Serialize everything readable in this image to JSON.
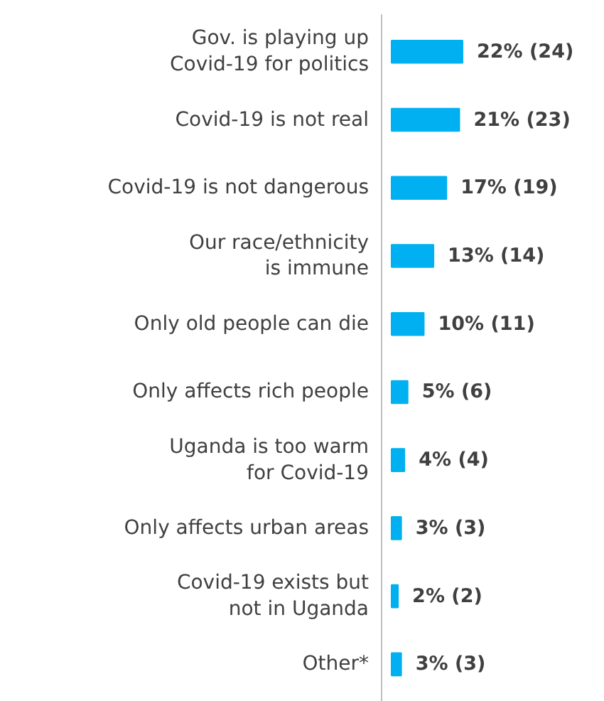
{
  "chart_data": {
    "type": "bar",
    "orientation": "horizontal",
    "categories": [
      "Gov. is playing up\nCovid-19 for politics",
      "Covid-19 is not real",
      "Covid-19 is not dangerous",
      "Our race/ethnicity\nis immune",
      "Only old people can die",
      "Only affects rich people",
      "Uganda is too warm\nfor Covid-19",
      "Only affects urban areas",
      "Covid-19 exists but\nnot in Uganda",
      "Other*"
    ],
    "values": [
      22,
      21,
      17,
      13,
      10,
      5,
      4,
      3,
      2,
      3
    ],
    "value_labels": [
      "22% (24)",
      "21% (23)",
      "17% (19)",
      "13% (14)",
      "10% (11)",
      "5% (6)",
      "4% (4)",
      "3% (3)",
      "2% (2)",
      "3% (3)"
    ],
    "color": "#00b0f0",
    "grid": false
  }
}
